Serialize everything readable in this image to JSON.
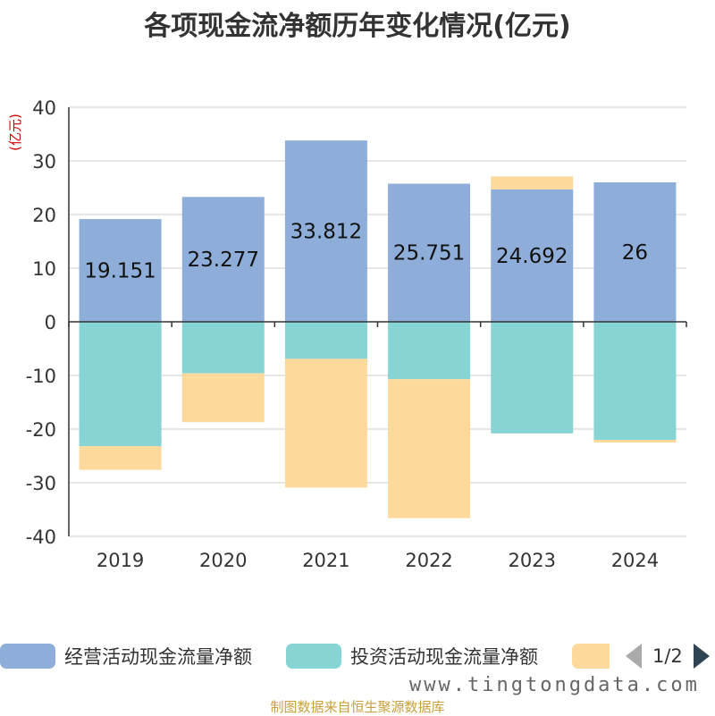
{
  "title": "各项现金流净额历年变化情况(亿元)",
  "chart_data": {
    "type": "bar",
    "stacked": true,
    "unit_label": "(亿元)",
    "categories": [
      "2019",
      "2020",
      "2021",
      "2022",
      "2023",
      "2024"
    ],
    "ylim": [
      -40,
      40
    ],
    "yticks": [
      40,
      30,
      20,
      10,
      0,
      -10,
      -20,
      -30,
      -40
    ],
    "grid": true,
    "series": [
      {
        "name": "经营活动现金流量净额",
        "color": "#8eaed9",
        "values": [
          19.151,
          23.277,
          33.812,
          25.751,
          24.692,
          26
        ],
        "labels": [
          "19.151",
          "23.277",
          "33.812",
          "25.751",
          "24.692",
          "26"
        ]
      },
      {
        "name": "投资活动现金流量净额",
        "color": "#86d4d4",
        "values": [
          -23.2,
          -9.6,
          -6.9,
          -10.7,
          -20.8,
          -22.0
        ]
      },
      {
        "name": "",
        "color": "#fdd99b",
        "values": [
          -4.4,
          -9.1,
          -24.0,
          -25.9,
          2.4,
          -0.5
        ]
      }
    ]
  },
  "legend": {
    "items": [
      {
        "label": "经营活动现金流量净额",
        "color": "#8eaed9"
      },
      {
        "label": "投资活动现金流量净额",
        "color": "#86d4d4"
      },
      {
        "label": "",
        "color": "#fdd99b"
      }
    ],
    "pager": "1/2"
  },
  "watermark": "www.tingtongdata.com",
  "source": "制图数据来自恒生聚源数据库"
}
